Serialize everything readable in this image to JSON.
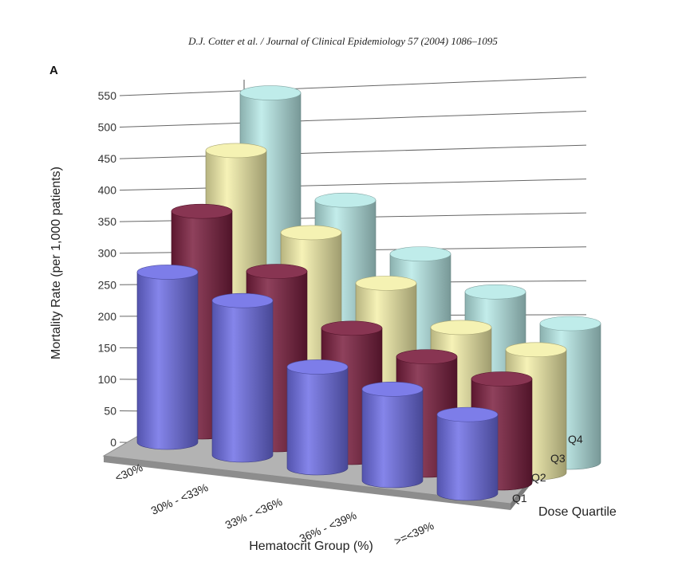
{
  "citation": "D.J. Cotter et al. / Journal of Clinical Epidemiology 57 (2004) 1086–1095",
  "panel_label": "A",
  "chart_data": {
    "type": "bar",
    "variant": "3d-cylinder",
    "title": "",
    "xlabel": "Hematocrit Group (%)",
    "ylabel": "Mortality Rate (per 1,000 patients)",
    "zlabel": "Dose Quartile",
    "ylim": [
      0,
      550
    ],
    "yticks": [
      "0",
      "50",
      "100",
      "150",
      "200",
      "250",
      "300",
      "350",
      "400",
      "450",
      "500",
      "550"
    ],
    "categories": [
      "<30%",
      "30% - <33%",
      "33% - <36%",
      "36% - <39%",
      ">=<39%"
    ],
    "series": [
      {
        "name": "Q1",
        "color": "#6f6fe6",
        "values": [
          270,
          245,
          160,
          145,
          125
        ]
      },
      {
        "name": "Q2",
        "color": "#7b1f3f",
        "values": [
          350,
          275,
          205,
          180,
          165
        ]
      },
      {
        "name": "Q3",
        "color": "#f4f0aa",
        "values": [
          430,
          320,
          260,
          210,
          195
        ]
      },
      {
        "name": "Q4",
        "color": "#b8eae8",
        "values": [
          505,
          355,
          290,
          250,
          220
        ]
      }
    ]
  }
}
